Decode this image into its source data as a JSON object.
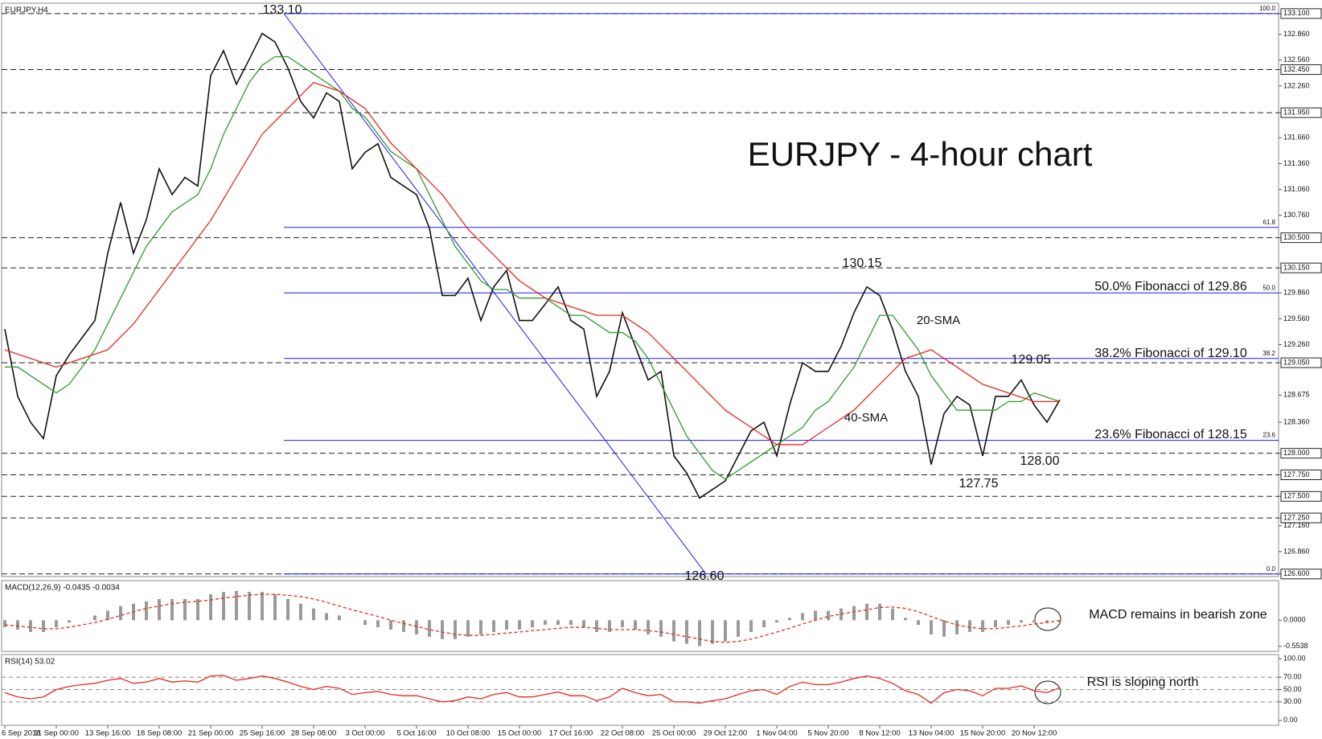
{
  "chart_data": [
    {
      "type": "line",
      "title": "EURJPY,H4",
      "annotations": [
        "EURJPY - 4-hour chart",
        "133.10",
        "130.15",
        "129.05",
        "128.00",
        "127.75",
        "126.60",
        "50.0% Fibonacci of 129.86",
        "38.2% Fibonacci of 129.10",
        "23.6% Fibonacci of 128.15"
      ],
      "time_labels": [
        "6 Sep 2018",
        "11 Sep 00:00",
        "13 Sep 16:00",
        "18 Sep 08:00",
        "21 Sep 00:00",
        "25 Sep 16:00",
        "28 Sep 08:00",
        "3 Oct 00:00",
        "5 Oct 16:00",
        "10 Oct 08:00",
        "15 Oct 00:00",
        "17 Oct 16:00",
        "22 Oct 08:00",
        "25 Oct 00:00",
        "29 Oct 12:00",
        "1 Nov 04:00",
        "5 Nov 20:00",
        "8 Nov 12:00",
        "13 Nov 04:00",
        "15 Nov 20:00",
        "20 Nov 12:00"
      ],
      "series": [
        {
          "color": "#111111",
          "values": [
            129.44,
            128.66,
            128.36,
            128.17,
            128.9,
            129.14,
            129.34,
            129.54,
            130.32,
            130.91,
            130.32,
            130.71,
            131.3,
            131.0,
            131.2,
            131.1,
            132.38,
            132.67,
            132.28,
            132.57,
            132.87,
            132.77,
            132.47,
            132.08,
            131.89,
            132.18,
            132.08,
            131.3,
            131.49,
            131.59,
            131.2,
            131.1,
            131.0,
            130.61,
            129.83,
            129.83,
            130.03,
            129.54,
            129.93,
            130.12,
            129.54,
            129.54,
            129.73,
            129.93,
            129.54,
            129.44,
            128.66,
            128.95,
            129.63,
            129.24,
            128.85,
            128.95,
            127.97,
            127.77,
            127.48,
            127.58,
            127.68,
            127.97,
            128.26,
            128.36,
            127.97,
            128.56,
            129.05,
            128.95,
            128.95,
            129.24,
            129.63,
            129.93,
            129.83,
            129.44,
            128.95,
            128.66,
            127.87,
            128.46,
            128.66,
            128.56,
            127.97,
            128.66,
            128.66,
            128.85,
            128.56,
            128.36,
            128.62
          ]
        },
        {
          "name": "20-SMA",
          "color": "#2e9b2e",
          "values": [
            129.0,
            129.0,
            128.9,
            128.8,
            128.7,
            128.8,
            129.0,
            129.2,
            129.5,
            129.8,
            130.1,
            130.4,
            130.6,
            130.8,
            130.9,
            131.0,
            131.3,
            131.7,
            132.0,
            132.3,
            132.5,
            132.6,
            132.6,
            132.5,
            132.4,
            132.3,
            132.2,
            132.0,
            131.9,
            131.7,
            131.5,
            131.4,
            131.3,
            131.0,
            130.7,
            130.4,
            130.2,
            130.0,
            129.9,
            129.9,
            129.8,
            129.8,
            129.8,
            129.7,
            129.6,
            129.6,
            129.5,
            129.4,
            129.4,
            129.3,
            129.1,
            128.8,
            128.5,
            128.2,
            128.0,
            127.8,
            127.7,
            127.8,
            127.9,
            128.0,
            128.1,
            128.2,
            128.3,
            128.5,
            128.6,
            128.8,
            129.0,
            129.3,
            129.6,
            129.6,
            129.4,
            129.2,
            128.9,
            128.7,
            128.5,
            128.5,
            128.5,
            128.5,
            128.6,
            128.6,
            128.7,
            128.65,
            128.6
          ]
        },
        {
          "name": "40-SMA",
          "color": "#e8281e",
          "values": [
            129.2,
            129.15,
            129.1,
            129.05,
            129.0,
            129.05,
            129.1,
            129.15,
            129.2,
            129.35,
            129.5,
            129.7,
            129.9,
            130.1,
            130.3,
            130.5,
            130.7,
            130.95,
            131.2,
            131.45,
            131.7,
            131.85,
            132.0,
            132.15,
            132.3,
            132.25,
            132.2,
            132.1,
            132.0,
            131.8,
            131.6,
            131.45,
            131.3,
            131.15,
            131.0,
            130.8,
            130.6,
            130.45,
            130.3,
            130.15,
            130.0,
            129.9,
            129.8,
            129.75,
            129.7,
            129.65,
            129.6,
            129.6,
            129.6,
            129.5,
            129.4,
            129.25,
            129.1,
            128.95,
            128.8,
            128.65,
            128.5,
            128.4,
            128.3,
            128.2,
            128.1,
            128.1,
            128.1,
            128.2,
            128.3,
            128.4,
            128.5,
            128.65,
            128.8,
            128.95,
            129.1,
            129.15,
            129.2,
            129.1,
            129.0,
            128.9,
            128.8,
            128.75,
            128.7,
            128.65,
            128.6,
            128.6,
            128.6
          ]
        }
      ],
      "ylim": [
        126.57,
        133.22
      ],
      "yticks": [
        {
          "value": 133.1,
          "label": "133.100"
        },
        {
          "value": 132.86,
          "label": "132.860"
        },
        {
          "value": 132.56,
          "label": "132.560"
        },
        {
          "value": 132.45,
          "label": "132.450"
        },
        {
          "value": 132.26,
          "label": "132.260"
        },
        {
          "value": 131.95,
          "label": "131.950"
        },
        {
          "value": 131.66,
          "label": "131.660"
        },
        {
          "value": 131.36,
          "label": "131.360"
        },
        {
          "value": 131.06,
          "label": "131.060"
        },
        {
          "value": 130.76,
          "label": "130.760"
        },
        {
          "value": 130.5,
          "label": "130.500"
        },
        {
          "value": 130.15,
          "label": "130.150"
        },
        {
          "value": 129.86,
          "label": "129.860"
        },
        {
          "value": 129.56,
          "label": "129.560"
        },
        {
          "value": 129.26,
          "label": "129.260"
        },
        {
          "value": 129.05,
          "label": "129.050"
        },
        {
          "value": 128.675,
          "label": "128.675"
        },
        {
          "value": 128.36,
          "label": "128.360"
        },
        {
          "value": 128.0,
          "label": "128.000"
        },
        {
          "value": 127.75,
          "label": "127.750"
        },
        {
          "value": 127.5,
          "label": "127.500"
        },
        {
          "value": 127.25,
          "label": "127.250"
        },
        {
          "value": 127.16,
          "label": "127.160"
        },
        {
          "value": 126.86,
          "label": "126.860"
        },
        {
          "value": 126.6,
          "label": "126.600"
        }
      ],
      "levels": [
        133.1,
        132.45,
        131.95,
        130.5,
        130.15,
        129.05,
        128.0,
        127.75,
        127.5,
        127.25,
        126.6
      ],
      "fibonacci": [
        {
          "value": 133.1,
          "label": "100.0"
        },
        {
          "value": 130.62,
          "label": "61.8"
        },
        {
          "value": 129.86,
          "label": "50.0"
        },
        {
          "value": 129.1,
          "label": "38.2"
        },
        {
          "value": 128.15,
          "label": "23.6"
        },
        {
          "value": 126.6,
          "label": "0.0"
        }
      ],
      "fib_color": "#1a1aff"
    },
    {
      "type": "bar",
      "title": "MACD(12,26,9) -0.0435 -0.0034",
      "annotations": [
        "MACD remains in bearish zone"
      ],
      "series": [
        {
          "color": "#9a9a9a",
          "values": [
            -0.15,
            -0.2,
            -0.25,
            -0.25,
            -0.15,
            -0.05,
            0.0,
            0.1,
            0.2,
            0.3,
            0.35,
            0.4,
            0.45,
            0.45,
            0.45,
            0.45,
            0.55,
            0.6,
            0.62,
            0.6,
            0.6,
            0.55,
            0.45,
            0.35,
            0.25,
            0.15,
            0.1,
            0.0,
            -0.1,
            -0.15,
            -0.2,
            -0.25,
            -0.3,
            -0.35,
            -0.4,
            -0.4,
            -0.35,
            -0.3,
            -0.25,
            -0.2,
            -0.2,
            -0.15,
            -0.1,
            -0.1,
            -0.1,
            -0.15,
            -0.25,
            -0.25,
            -0.15,
            -0.2,
            -0.3,
            -0.35,
            -0.45,
            -0.5,
            -0.55,
            -0.5,
            -0.45,
            -0.35,
            -0.25,
            -0.15,
            -0.05,
            0.05,
            0.15,
            0.2,
            0.2,
            0.25,
            0.3,
            0.35,
            0.35,
            0.25,
            0.05,
            -0.1,
            -0.3,
            -0.35,
            -0.3,
            -0.25,
            -0.25,
            -0.15,
            -0.1,
            -0.05,
            -0.05,
            -0.05,
            -0.0435
          ]
        },
        {
          "type": "line",
          "dashed": true,
          "color": "#e8281e",
          "values": [
            -0.1,
            -0.12,
            -0.15,
            -0.18,
            -0.18,
            -0.15,
            -0.1,
            -0.05,
            0.02,
            0.1,
            0.18,
            0.25,
            0.3,
            0.35,
            0.38,
            0.4,
            0.43,
            0.47,
            0.5,
            0.53,
            0.55,
            0.55,
            0.53,
            0.5,
            0.45,
            0.38,
            0.3,
            0.22,
            0.15,
            0.08,
            0.0,
            -0.07,
            -0.13,
            -0.2,
            -0.25,
            -0.3,
            -0.32,
            -0.32,
            -0.3,
            -0.27,
            -0.25,
            -0.22,
            -0.2,
            -0.17,
            -0.15,
            -0.15,
            -0.17,
            -0.2,
            -0.2,
            -0.2,
            -0.22,
            -0.25,
            -0.3,
            -0.35,
            -0.4,
            -0.45,
            -0.47,
            -0.45,
            -0.4,
            -0.33,
            -0.25,
            -0.17,
            -0.08,
            0.0,
            0.08,
            0.13,
            0.18,
            0.22,
            0.27,
            0.28,
            0.25,
            0.18,
            0.08,
            -0.02,
            -0.1,
            -0.15,
            -0.18,
            -0.18,
            -0.15,
            -0.12,
            -0.08,
            -0.05,
            -0.0034
          ]
        }
      ],
      "ylim": [
        -0.66,
        0.84
      ],
      "yticks": [
        {
          "value": 0,
          "label": "0.0000"
        },
        {
          "value": -0.5538,
          "label": "-0.5538"
        }
      ]
    },
    {
      "type": "line",
      "title": "RSI(14) 53.02",
      "annotations": [
        "RSI is sloping north"
      ],
      "series": [
        {
          "color": "#e8281e",
          "values": [
            45,
            38,
            35,
            38,
            50,
            55,
            58,
            60,
            65,
            68,
            60,
            62,
            68,
            62,
            64,
            62,
            72,
            73,
            65,
            68,
            72,
            68,
            62,
            55,
            50,
            55,
            52,
            42,
            45,
            47,
            42,
            40,
            40,
            35,
            30,
            32,
            38,
            35,
            42,
            45,
            38,
            38,
            42,
            46,
            40,
            40,
            32,
            38,
            52,
            45,
            40,
            42,
            30,
            30,
            28,
            32,
            35,
            42,
            48,
            50,
            42,
            55,
            62,
            58,
            58,
            62,
            68,
            72,
            68,
            60,
            48,
            42,
            28,
            45,
            50,
            48,
            40,
            52,
            52,
            56,
            48,
            45,
            53.02
          ]
        }
      ],
      "ylim": [
        -8,
        106.7
      ],
      "yticks": [
        {
          "value": 100,
          "label": "100.00"
        },
        {
          "value": 70,
          "label": "70.00"
        },
        {
          "value": 50,
          "label": "50.00"
        },
        {
          "value": 30,
          "label": "30.00"
        },
        {
          "value": 0,
          "label": "0.00"
        }
      ],
      "guides": [
        70,
        50,
        30
      ]
    }
  ]
}
